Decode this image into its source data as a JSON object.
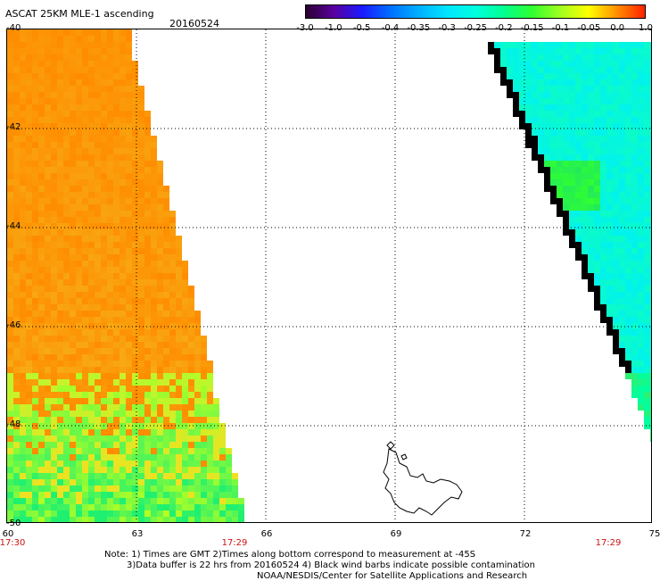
{
  "header": {
    "title": "ASCAT 25KM MLE-1 ascending",
    "date": "20160524"
  },
  "colorbar": {
    "tick_labels": [
      "-3.0",
      "-1.0",
      "-0.5",
      "-0.4",
      "-0.35",
      "-0.3",
      "-0.25",
      "-0.2",
      "-0.15",
      "-0.1",
      "-0.05",
      "0.0",
      "1.0"
    ],
    "colors": [
      "#2a0030",
      "#5a00a0",
      "#1a1aff",
      "#0070ff",
      "#00b0ff",
      "#00e5ff",
      "#00ffe0",
      "#00ff90",
      "#30ff30",
      "#a0ff20",
      "#ffff00",
      "#ff9000",
      "#ff2000"
    ]
  },
  "map": {
    "x_tick_labels": [
      "60",
      "63",
      "66",
      "69",
      "72",
      "75"
    ],
    "y_tick_labels": [
      "-40",
      "-42",
      "-44",
      "-46",
      "-48",
      "-50"
    ],
    "time_labels": [
      "17:30",
      "17:29",
      "17:29"
    ],
    "land_outline_color": "#000000",
    "grid": "dotted"
  },
  "notes": {
    "line1": "Note: 1) Times are GMT 2)Times along bottom correspond to measurement at -45S",
    "line2": "3)Data buffer is 22 hrs from 20160524 4) Black wind barbs indicate possible contamination",
    "line3": "NOAA/NESDIS/Center for Satellite Applications and Research"
  }
}
